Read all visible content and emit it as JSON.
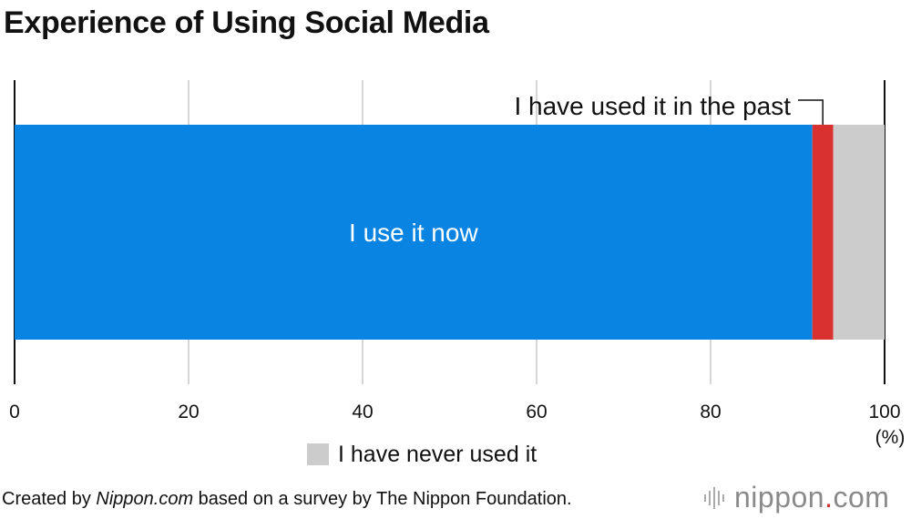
{
  "title": "Experience of Using Social Media",
  "chart_data": {
    "type": "bar",
    "orientation": "horizontal",
    "stacked": true,
    "xlim": [
      0,
      100
    ],
    "xticks": [
      "0",
      "20",
      "40",
      "60",
      "80",
      "100"
    ],
    "x_unit": "(%)",
    "grid": true,
    "series": [
      {
        "name": "I use it now",
        "value": 91.7,
        "color": "#0a84e3",
        "label_style": "inside"
      },
      {
        "name": "I have used it in the past",
        "value": 2.4,
        "color": "#d93030",
        "label_style": "callout-above"
      },
      {
        "name": "I have never used it",
        "value": 5.9,
        "color": "#cccccc",
        "label_style": "legend"
      }
    ]
  },
  "legend": {
    "label": "I have never used it",
    "color": "#cccccc"
  },
  "footer": {
    "prefix": "Created by ",
    "source": "Nippon.com",
    "suffix": " based on a survey by The Nippon Foundation."
  },
  "brand": {
    "name": "nippon",
    "dot": ".",
    "tld": "com",
    "icon": "sound-wave-icon"
  }
}
